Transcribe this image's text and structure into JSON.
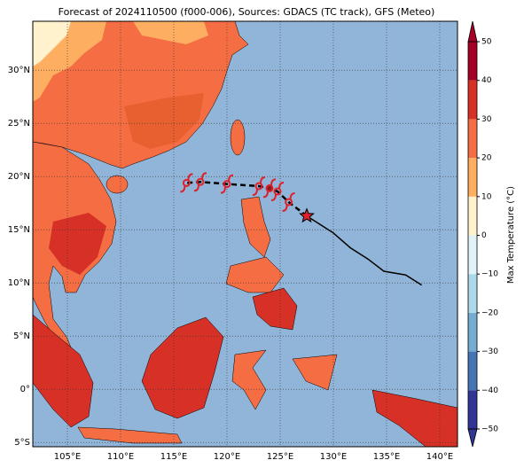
{
  "map": {
    "title": "Forecast of 2024110500 (f000-006), Sources: GDACS (TC track), GFS (Meteo)",
    "lonlim": [
      101.75,
      141.67
    ],
    "latlim": [
      -5.4,
      34.6
    ],
    "lonticks": [
      {
        "value": 105,
        "label": "105°E"
      },
      {
        "value": 110,
        "label": "110°E"
      },
      {
        "value": 115,
        "label": "115°E"
      },
      {
        "value": 120,
        "label": "120°E"
      },
      {
        "value": 125,
        "label": "125°E"
      },
      {
        "value": 130,
        "label": "130°E"
      },
      {
        "value": 135,
        "label": "135°E"
      },
      {
        "value": 140,
        "label": "140°E"
      }
    ],
    "latticks": [
      {
        "value": 30,
        "label": "30°N"
      },
      {
        "value": 25,
        "label": "25°N"
      },
      {
        "value": 20,
        "label": "20°N"
      },
      {
        "value": 15,
        "label": "15°N"
      },
      {
        "value": 10,
        "label": "10°N"
      },
      {
        "value": 5,
        "label": "5°N"
      },
      {
        "value": 0,
        "label": "0°"
      },
      {
        "value": -5,
        "label": "5°S"
      }
    ],
    "grid": true,
    "track": {
      "observed": {
        "lon": [
          127.5,
          130.0,
          131.6,
          133.25,
          134.75,
          136.8,
          138.3
        ],
        "lat": [
          16.3,
          14.7,
          13.3,
          12.25,
          11.1,
          10.75,
          9.8
        ]
      },
      "forecast": {
        "lon": [
          127.5,
          125.8,
          124.75,
          124.0,
          123.0,
          120.0,
          117.5,
          116.2
        ],
        "lat": [
          16.3,
          17.6,
          18.6,
          18.9,
          19.1,
          19.3,
          19.5,
          19.4
        ]
      }
    },
    "colorbar": {
      "label": "Max Temperature (°C)",
      "lim": [
        -50,
        50
      ],
      "ticks": [
        {
          "value": -50,
          "label": "−50"
        },
        {
          "value": -40,
          "label": "−40"
        },
        {
          "value": -30,
          "label": "−30"
        },
        {
          "value": -20,
          "label": "−20"
        },
        {
          "value": -10,
          "label": "−10"
        },
        0,
        10,
        20,
        30,
        40,
        50
      ],
      "colors": [
        "#313695",
        "#4575b4",
        "#74add1",
        "#abd9e9",
        "#e0f3f8",
        "#fff2cc",
        "#fdae61",
        "#f46d43",
        "#d73027",
        "#a50026"
      ]
    }
  }
}
